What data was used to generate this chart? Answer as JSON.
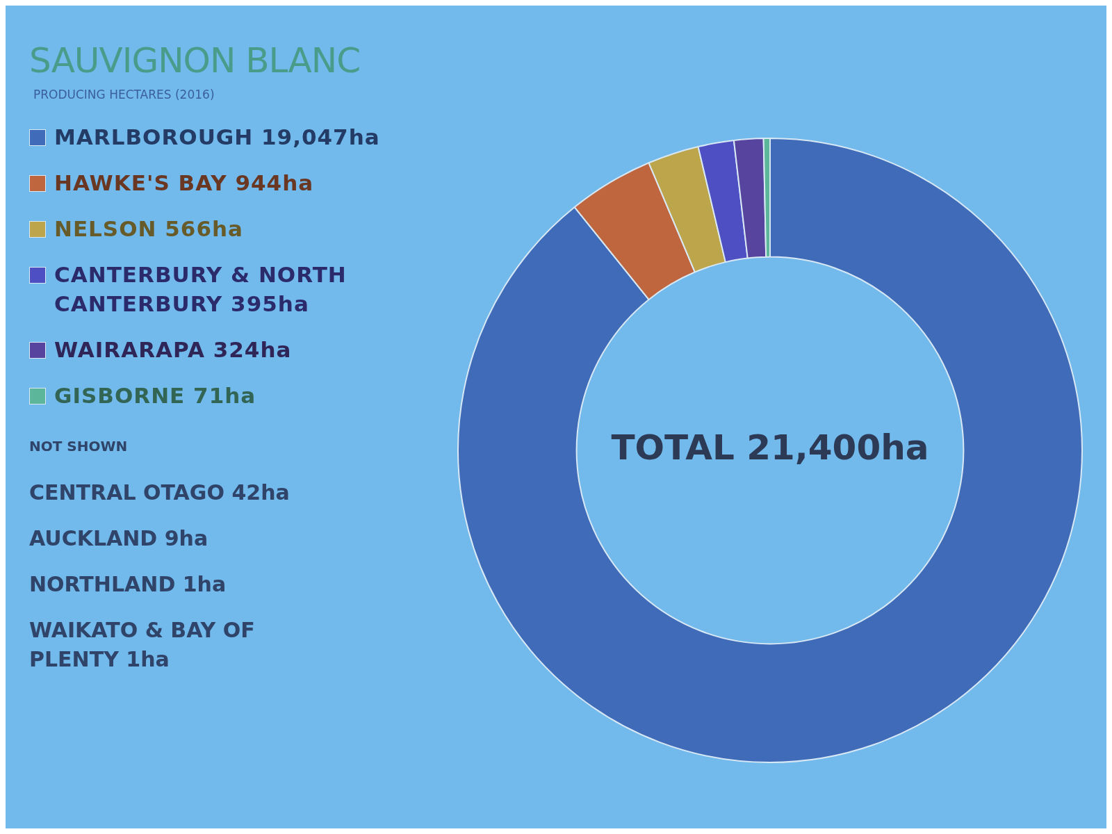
{
  "chart_data": {
    "type": "donut",
    "title": "SAUVIGNON BLANC",
    "subtitle": "PRODUCING HECTARES (2016)",
    "categories": [
      "MARLBOROUGH",
      "HAWKE'S BAY",
      "NELSON",
      "CANTERBURY & NORTH CANTERBURY",
      "WAIRARAPA",
      "GISBORNE"
    ],
    "values": [
      19047,
      944,
      566,
      395,
      324,
      71
    ],
    "value_labels": [
      "19,047ha",
      "944ha",
      "566ha",
      "395ha",
      "324ha",
      "71ha"
    ],
    "colors": [
      "#3f6bb8",
      "#c0663e",
      "#bda54c",
      "#4f4fc4",
      "#56449f",
      "#5cb79a"
    ],
    "legend": "left",
    "annotations": [
      "TOTAL 21,400ha",
      "NOT SHOWN",
      "CENTRAL OTAGO 42ha",
      "AUCKLAND 9ha",
      "NORTHLAND 1ha",
      "WAIKATO & BAY OF PLENTY 1ha"
    ]
  }
}
